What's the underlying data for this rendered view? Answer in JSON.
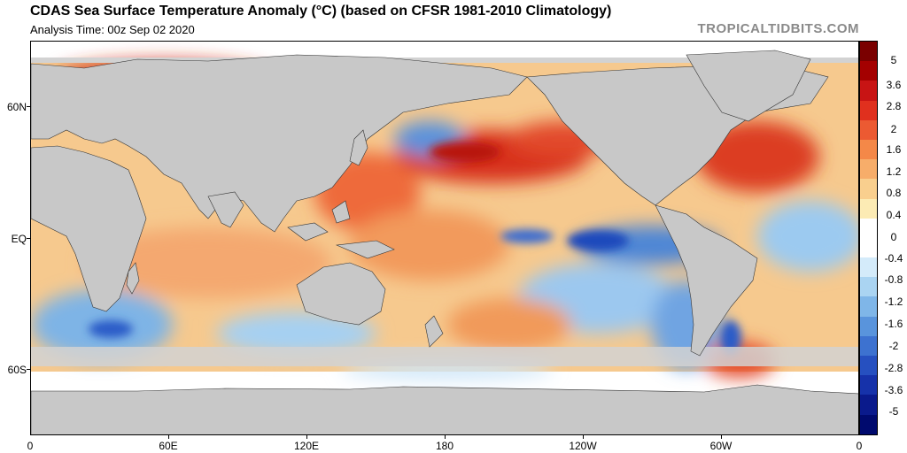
{
  "header": {
    "title": "CDAS Sea Surface Temperature Anomaly (°C) (based on CFSR 1981-2010 Climatology)",
    "subtitle": "Analysis Time: 00z Sep 02 2020",
    "brand": "TROPICALTIDBITS.COM"
  },
  "axes": {
    "lat_labels": [
      "60N",
      "EQ",
      "60S"
    ],
    "lon_labels": [
      "0",
      "60E",
      "120E",
      "180",
      "120W",
      "60W",
      "0"
    ]
  },
  "colorbar": {
    "labels": [
      "5",
      "3.6",
      "2.8",
      "2",
      "1.6",
      "1.2",
      "0.8",
      "0.4",
      "0",
      "-0.4",
      "-0.8",
      "-1.2",
      "-1.6",
      "-2",
      "-2.8",
      "-3.6",
      "-5"
    ],
    "colors": [
      "#7a0000",
      "#a40000",
      "#c81414",
      "#e0301e",
      "#ec5a32",
      "#f48848",
      "#f7ad6a",
      "#f9cf8e",
      "#fcebb4",
      "#ffffff",
      "#ffffff",
      "#d4ebfa",
      "#aad4f2",
      "#7fb6e8",
      "#5994dc",
      "#3d72d0",
      "#2650c0",
      "#1632aa",
      "#0a1a8c",
      "#000a6e"
    ],
    "land_color": "#c8c8c8",
    "ice_color": "#d2d2d2"
  }
}
